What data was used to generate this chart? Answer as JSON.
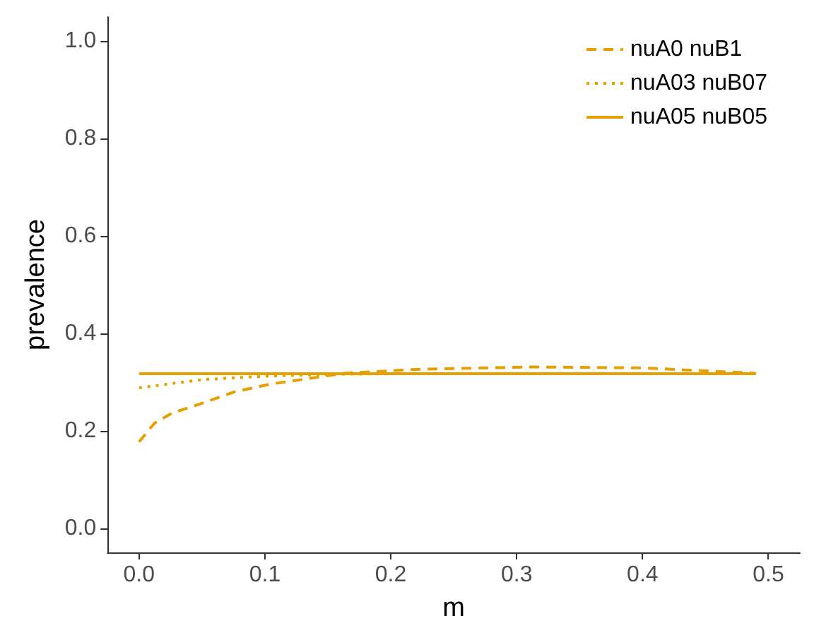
{
  "chart_data": {
    "type": "line",
    "xlabel": "m",
    "ylabel": "prevalence",
    "xlim": [
      -0.025,
      0.525
    ],
    "xticks": [
      {
        "value": 0,
        "label": "0.0"
      },
      0.1,
      0.2,
      0.3,
      0.4,
      0.5
    ],
    "ylim": [
      -0.05,
      1.05
    ],
    "yticks": [
      {
        "value": 0,
        "label": "0.0"
      },
      0.2,
      0.4,
      0.6,
      0.8,
      {
        "value": 1,
        "label": "1.0"
      }
    ],
    "grid": false,
    "legend": "top right",
    "series": [
      {
        "name": "nuA0 nuB1",
        "color": "#e69f00",
        "line_style": "dashed",
        "x": [
          0,
          0.012,
          0.026,
          0.052,
          0.076,
          0.105,
          0.134,
          0.163,
          0.22,
          0.31,
          0.4,
          0.49
        ],
        "values": [
          0.177,
          0.215,
          0.236,
          0.258,
          0.28,
          0.296,
          0.307,
          0.318,
          0.326,
          0.331,
          0.329,
          0.318
        ]
      },
      {
        "name": "nuA03 nuB07",
        "color": "#e69f00",
        "line_style": "dotted",
        "x": [
          0,
          0.05,
          0.1,
          0.15,
          0.2,
          0.3,
          0.4,
          0.49
        ],
        "values": [
          0.288,
          0.305,
          0.312,
          0.316,
          0.317,
          0.317,
          0.317,
          0.317
        ]
      },
      {
        "name": "nuA05 nuB05",
        "color": "#e69f00",
        "line_style": "solid",
        "x": [
          0,
          0.49
        ],
        "values": [
          0.317,
          0.317
        ]
      }
    ]
  }
}
